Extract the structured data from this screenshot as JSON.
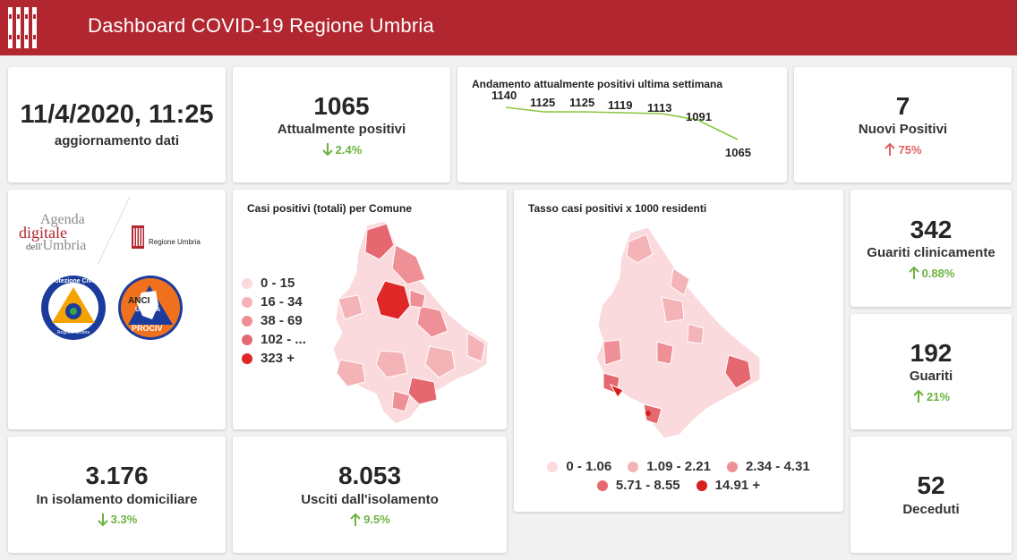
{
  "header": {
    "title": "Dashboard COVID-19 Regione Umbria"
  },
  "update": {
    "datetime": "11/4/2020, 11:25",
    "label": "aggiornamento dati"
  },
  "attualmente_positivi": {
    "value": "1065",
    "label": "Attualmente positivi",
    "change": "2.4%",
    "direction": "down"
  },
  "trend": {
    "title": "Andamento attualmente positivi ultima settimana",
    "labels": [
      "1140",
      "1125",
      "1125",
      "1119",
      "1113",
      "1091",
      "1065"
    ]
  },
  "nuovi_positivi": {
    "value": "7",
    "label": "Nuovi Positivi",
    "change": "75%",
    "direction": "up"
  },
  "logos": {
    "agenda_line1": "Agenda",
    "agenda_line2": "digitale",
    "agenda_line3_a": "dell'",
    "agenda_line3_b": "Umbria",
    "regione": "Regione Umbria",
    "protezione_top": "Protezione Civile",
    "protezione_bottom": "Regione Umbria",
    "anci_a": "ANCI",
    "anci_b": "UMBRIA",
    "anci_c": "PROCIV"
  },
  "map_comuni": {
    "title": "Casi positivi (totali) per Comune",
    "legend": [
      {
        "label": "0 - 15",
        "color": "#fadadd"
      },
      {
        "label": "16 - 34",
        "color": "#f4b3b7"
      },
      {
        "label": "38 - 69",
        "color": "#ee9096"
      },
      {
        "label": "102 - ...",
        "color": "#e56870"
      },
      {
        "label": "323 +",
        "color": "#e02727"
      }
    ]
  },
  "map_tasso": {
    "title": "Tasso casi positivi x 1000 residenti",
    "legend": [
      {
        "label": "0 - 1.06",
        "color": "#fadadd"
      },
      {
        "label": "1.09 - 2.21",
        "color": "#f4b3b7"
      },
      {
        "label": "2.34 - 4.31",
        "color": "#ee9096"
      },
      {
        "label": "5.71 - 8.55",
        "color": "#e56870"
      },
      {
        "label": "14.91 +",
        "color": "#d81f1f"
      }
    ]
  },
  "guariti_clinicamente": {
    "value": "342",
    "label": "Guariti clinicamente",
    "change": "0.88%",
    "direction": "up"
  },
  "guariti": {
    "value": "192",
    "label": "Guariti",
    "change": "21%",
    "direction": "up"
  },
  "isolamento": {
    "value": "3.176",
    "label": "In isolamento domiciliare",
    "change": "3.3%",
    "direction": "down"
  },
  "usciti": {
    "value": "8.053",
    "label": "Usciti dall'isolamento",
    "change": "9.5%",
    "direction": "up"
  },
  "deceduti": {
    "value": "52",
    "label": "Deceduti"
  },
  "colors": {
    "brand_red": "#b1262f",
    "increase_bad": "#e06262",
    "good": "#6db33f",
    "sparkline": "#8dc63f"
  }
}
